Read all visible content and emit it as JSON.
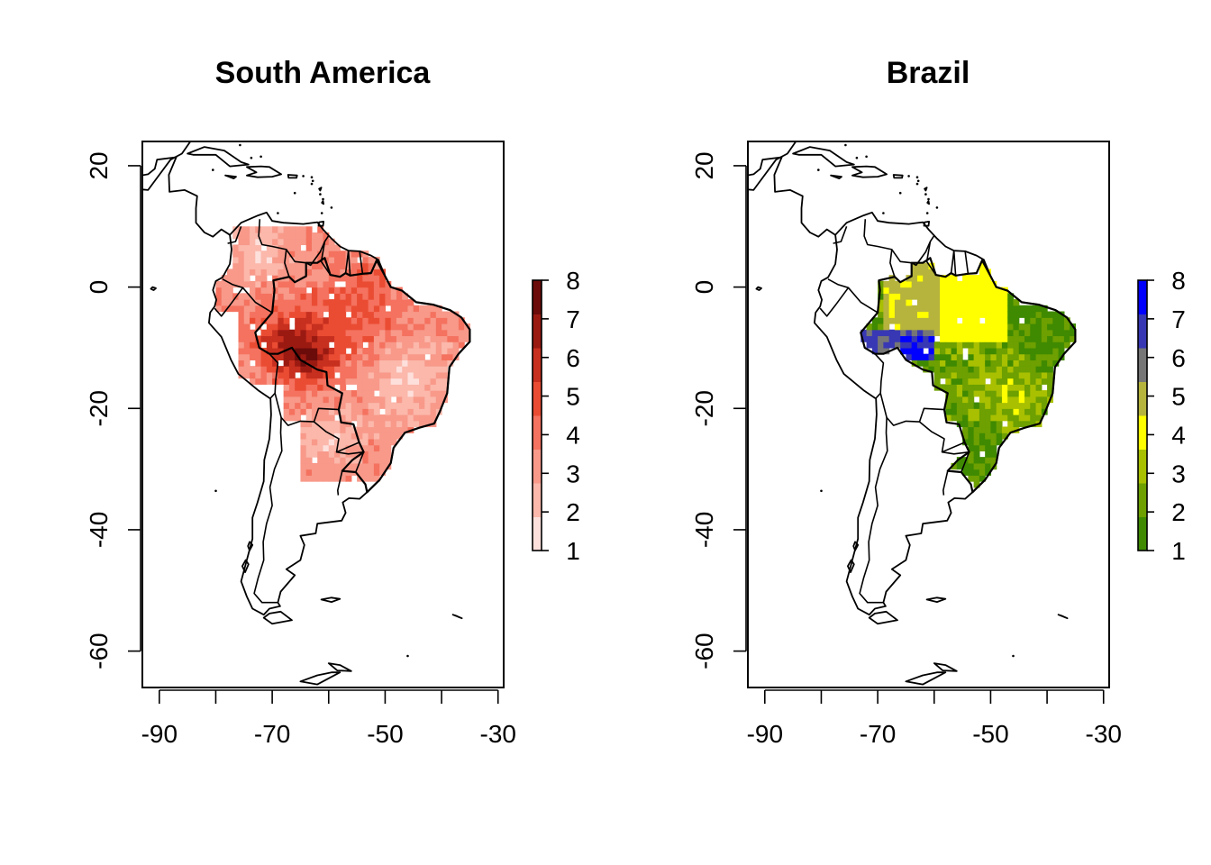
{
  "panels": [
    {
      "id": "south-america",
      "title": "South America",
      "palette": [
        "#fde0dc",
        "#fbb8ab",
        "#f8998a",
        "#f4725f",
        "#ea4c33",
        "#c72f1f",
        "#9a1a12",
        "#6b0c0a"
      ],
      "x_ticks": [
        "-90",
        "-70",
        "-50",
        "-30"
      ],
      "y_ticks": [
        "20",
        "0",
        "-20",
        "-40",
        "-60"
      ],
      "legend_ticks": [
        "8",
        "7",
        "6",
        "5",
        "4",
        "3",
        "2",
        "1"
      ]
    },
    {
      "id": "brazil",
      "title": "Brazil",
      "palette": [
        "#3f8a00",
        "#6da000",
        "#a8c000",
        "#ffff00",
        "#b6b43c",
        "#767676",
        "#3838b4",
        "#0000ff"
      ],
      "x_ticks": [
        "-90",
        "-70",
        "-50",
        "-30"
      ],
      "y_ticks": [
        "20",
        "0",
        "-20",
        "-40",
        "-60"
      ],
      "legend_ticks": [
        "8",
        "7",
        "6",
        "5",
        "4",
        "3",
        "2",
        "1"
      ]
    }
  ],
  "chart_data": [
    {
      "type": "heatmap",
      "title": "South America",
      "xlim": [
        -93,
        -29
      ],
      "ylim": [
        -66,
        24
      ],
      "x_ticks": [
        -90,
        -80,
        -70,
        -60,
        -50,
        -40,
        -30
      ],
      "x_tick_labels": [
        -90,
        -70,
        -50,
        -30
      ],
      "y_ticks": [
        20,
        0,
        -20,
        -40,
        -60
      ],
      "legend_range": [
        1,
        8
      ],
      "regions": [
        {
          "class": 1,
          "lon": [
            -76,
            -64
          ],
          "lat": [
            -8,
            12
          ]
        },
        {
          "class": 3,
          "lon": [
            -58,
            -36
          ],
          "lat": [
            -10,
            2
          ]
        },
        {
          "class": 4,
          "lon": [
            -62,
            -44
          ],
          "lat": [
            -6,
            6
          ]
        },
        {
          "class": 5,
          "lon": [
            -72,
            -55
          ],
          "lat": [
            -12,
            2
          ]
        },
        {
          "class": 6,
          "lon": [
            -76,
            -66
          ],
          "lat": [
            -14,
            -4
          ]
        },
        {
          "class": 8,
          "lon": [
            -66,
            -59
          ],
          "lat": [
            -16,
            -9
          ]
        },
        {
          "class": 2,
          "lon": [
            -58,
            -42
          ],
          "lat": [
            -24,
            -12
          ]
        },
        {
          "class": 3,
          "lon": [
            -62,
            -50
          ],
          "lat": [
            -30,
            -20
          ]
        }
      ]
    },
    {
      "type": "heatmap",
      "title": "Brazil",
      "xlim": [
        -93,
        -29
      ],
      "ylim": [
        -66,
        24
      ],
      "x_ticks": [
        -90,
        -80,
        -70,
        -60,
        -50,
        -40,
        -30
      ],
      "x_tick_labels": [
        -90,
        -70,
        -50,
        -30
      ],
      "y_ticks": [
        20,
        0,
        -20,
        -40,
        -60
      ],
      "legend_range": [
        1,
        8
      ],
      "regions": [
        {
          "class": 5,
          "lon": [
            -68,
            -60
          ],
          "lat": [
            -7,
            3
          ]
        },
        {
          "class": 4,
          "lon": [
            -60,
            -48
          ],
          "lat": [
            -8,
            4
          ]
        },
        {
          "class": 6,
          "lon": [
            -73,
            -66
          ],
          "lat": [
            -11,
            -6
          ]
        },
        {
          "class": 8,
          "lon": [
            -66,
            -60
          ],
          "lat": [
            -13,
            -8
          ]
        },
        {
          "class": 1,
          "lon": [
            -50,
            -36
          ],
          "lat": [
            -12,
            -5
          ]
        },
        {
          "class": 2,
          "lon": [
            -56,
            -40
          ],
          "lat": [
            -22,
            -12
          ]
        },
        {
          "class": 3,
          "lon": [
            -52,
            -42
          ],
          "lat": [
            -24,
            -18
          ]
        },
        {
          "class": 1,
          "lon": [
            -56,
            -50
          ],
          "lat": [
            -33,
            -24
          ]
        }
      ]
    }
  ]
}
